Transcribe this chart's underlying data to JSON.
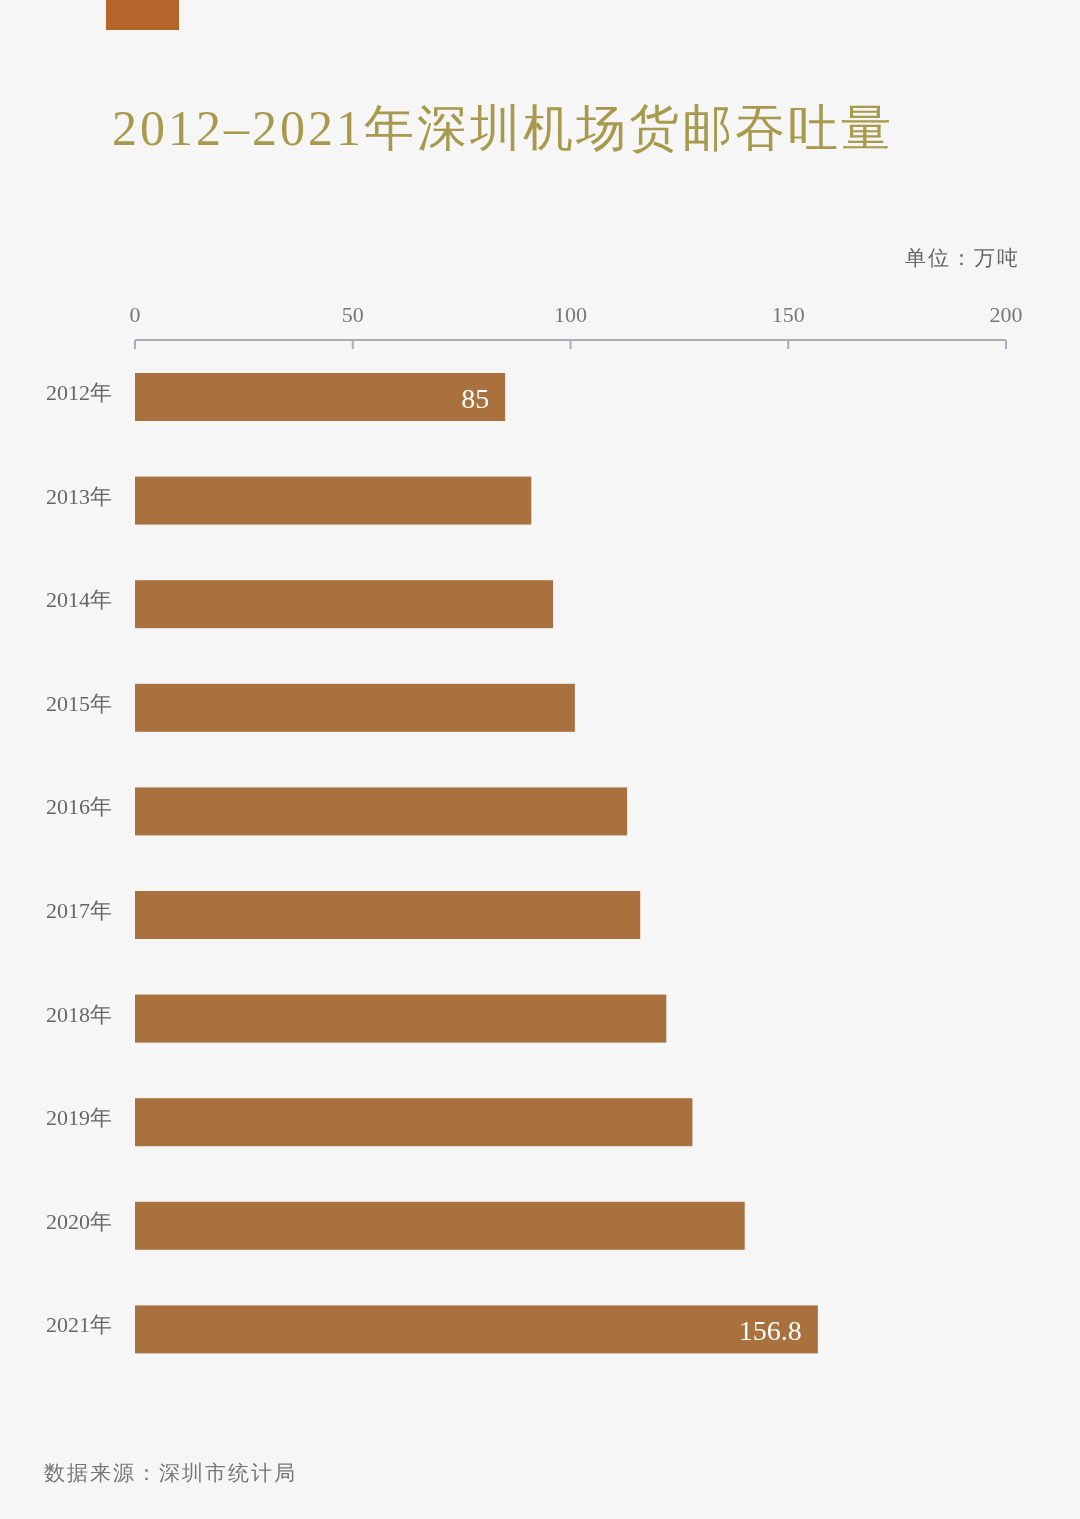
{
  "chart_data": {
    "type": "bar",
    "orientation": "horizontal",
    "title": "2012–2021年深圳机场货邮吞吐量",
    "xlabel": "单位：万吨",
    "categories": [
      "2012年",
      "2013年",
      "2014年",
      "2015年",
      "2016年",
      "2017年",
      "2018年",
      "2019年",
      "2020年",
      "2021年"
    ],
    "values": [
      85,
      91,
      96,
      101,
      113,
      116,
      122,
      128,
      140,
      156.8
    ],
    "value_labels": [
      "85",
      null,
      null,
      null,
      null,
      null,
      null,
      null,
      null,
      "156.8"
    ],
    "color": "#a8713e",
    "xlim": [
      0,
      200
    ],
    "xticks": [
      0,
      50,
      100,
      150,
      200
    ],
    "grid": false,
    "annotations": [
      "数据来源：深圳市统计局"
    ]
  }
}
